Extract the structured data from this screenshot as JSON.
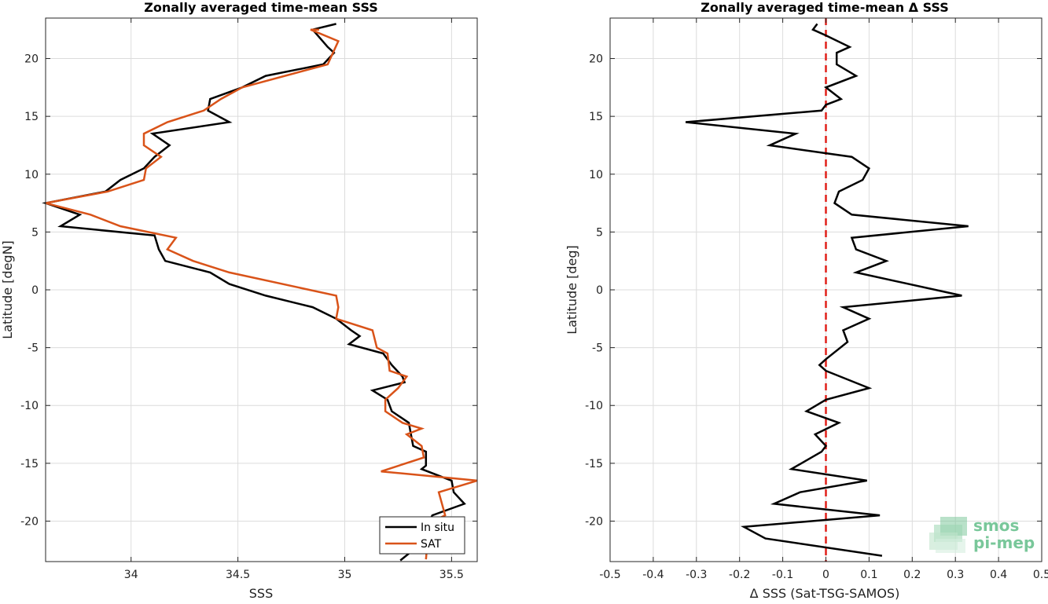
{
  "chart_data": [
    {
      "type": "line",
      "title": "Zonally averaged time-mean SSS",
      "xlabel": "SSS",
      "ylabel": "Latitude [degN]",
      "xlim": [
        33.6,
        35.62
      ],
      "ylim": [
        -23.5,
        23.5
      ],
      "xticks": [
        34,
        34.5,
        35,
        35.5
      ],
      "xtick_labels": [
        "34",
        "34.5",
        "35",
        "35.5"
      ],
      "yticks": [
        20,
        15,
        10,
        5,
        0,
        -5,
        -10,
        -15,
        -20
      ],
      "ytick_labels": [
        "20",
        "15",
        "10",
        "5",
        "0",
        "-5",
        "-10",
        "-15",
        "-20"
      ],
      "grid": true,
      "legend_position": "bottom-right",
      "series": [
        {
          "name": "In situ",
          "color": "#000000",
          "points": [
            [
              34.96,
              23.0
            ],
            [
              34.85,
              22.5
            ],
            [
              34.92,
              21.0
            ],
            [
              34.95,
              20.5
            ],
            [
              34.9,
              19.5
            ],
            [
              34.63,
              18.5
            ],
            [
              34.52,
              17.5
            ],
            [
              34.37,
              16.5
            ],
            [
              34.36,
              15.5
            ],
            [
              34.46,
              14.5
            ],
            [
              34.1,
              13.5
            ],
            [
              34.18,
              12.5
            ],
            [
              34.11,
              11.5
            ],
            [
              34.06,
              10.5
            ],
            [
              33.95,
              9.5
            ],
            [
              33.88,
              8.5
            ],
            [
              33.6,
              7.5
            ],
            [
              33.76,
              6.5
            ],
            [
              33.67,
              5.5
            ],
            [
              34.11,
              4.7
            ],
            [
              34.13,
              3.5
            ],
            [
              34.16,
              2.5
            ],
            [
              34.37,
              1.5
            ],
            [
              34.46,
              0.5
            ],
            [
              34.63,
              -0.5
            ],
            [
              34.85,
              -1.5
            ],
            [
              34.96,
              -2.5
            ],
            [
              35.03,
              -3.5
            ],
            [
              35.07,
              -4.0
            ],
            [
              35.02,
              -4.7
            ],
            [
              35.18,
              -5.5
            ],
            [
              35.22,
              -6.5
            ],
            [
              35.27,
              -7.5
            ],
            [
              35.28,
              -8.0
            ],
            [
              35.13,
              -8.7
            ],
            [
              35.2,
              -9.5
            ],
            [
              35.22,
              -10.5
            ],
            [
              35.3,
              -11.5
            ],
            [
              35.31,
              -12.5
            ],
            [
              35.32,
              -13.5
            ],
            [
              35.38,
              -14.0
            ],
            [
              35.38,
              -15.2
            ],
            [
              35.36,
              -15.5
            ],
            [
              35.5,
              -16.5
            ],
            [
              35.51,
              -17.5
            ],
            [
              35.56,
              -18.5
            ],
            [
              35.41,
              -19.5
            ],
            [
              35.38,
              -20.5
            ],
            [
              35.37,
              -21.5
            ],
            [
              35.32,
              -22.5
            ],
            [
              35.26,
              -23.4
            ]
          ]
        },
        {
          "name": "SAT",
          "color": "#d95319",
          "points": [
            [
              34.88,
              22.5
            ],
            [
              34.84,
              22.5
            ],
            [
              34.97,
              21.5
            ],
            [
              34.92,
              19.5
            ],
            [
              34.52,
              17.5
            ],
            [
              34.42,
              16.5
            ],
            [
              34.34,
              15.5
            ],
            [
              34.17,
              14.5
            ],
            [
              34.06,
              13.5
            ],
            [
              34.06,
              12.5
            ],
            [
              34.14,
              11.5
            ],
            [
              34.07,
              10.5
            ],
            [
              34.06,
              9.5
            ],
            [
              33.89,
              8.5
            ],
            [
              33.6,
              7.5
            ],
            [
              33.81,
              6.5
            ],
            [
              33.95,
              5.5
            ],
            [
              34.21,
              4.5
            ],
            [
              34.17,
              3.5
            ],
            [
              34.29,
              2.5
            ],
            [
              34.46,
              1.5
            ],
            [
              34.96,
              -0.5
            ],
            [
              34.97,
              -1.5
            ],
            [
              34.96,
              -2.5
            ],
            [
              35.13,
              -3.5
            ],
            [
              35.15,
              -5.0
            ],
            [
              35.2,
              -5.5
            ],
            [
              35.21,
              -7.0
            ],
            [
              35.29,
              -7.5
            ],
            [
              35.25,
              -8.5
            ],
            [
              35.19,
              -9.5
            ],
            [
              35.19,
              -10.5
            ],
            [
              35.27,
              -11.5
            ],
            [
              35.36,
              -12.0
            ],
            [
              35.29,
              -12.5
            ],
            [
              35.36,
              -13.5
            ],
            [
              35.37,
              -14.5
            ],
            [
              35.17,
              -15.7
            ],
            [
              35.62,
              -16.5
            ],
            [
              35.44,
              -17.5
            ],
            [
              35.47,
              -19.5
            ],
            [
              35.39,
              -20.2
            ],
            [
              35.39,
              -21.2
            ],
            [
              35.38,
              -23.3
            ]
          ]
        }
      ]
    },
    {
      "type": "line",
      "title": "Zonally averaged time-mean Δ SSS",
      "xlabel": "Δ SSS (Sat-TSG-SAMOS)",
      "ylabel": "Latitude [deg]",
      "xlim": [
        -0.5,
        0.5
      ],
      "ylim": [
        -23.5,
        23.5
      ],
      "xticks": [
        -0.5,
        -0.4,
        -0.3,
        -0.2,
        -0.1,
        0,
        0.1,
        0.2,
        0.3,
        0.4,
        0.5
      ],
      "xtick_labels": [
        "-0.5",
        "-0.4",
        "-0.3",
        "-0.2",
        "-0.1",
        "0",
        "0.1",
        "0.2",
        "0.3",
        "0.4",
        "0.5"
      ],
      "yticks": [
        20,
        15,
        10,
        5,
        0,
        -5,
        -10,
        -15,
        -20
      ],
      "ytick_labels": [
        "20",
        "15",
        "10",
        "5",
        "0",
        "-5",
        "-10",
        "-15",
        "-20"
      ],
      "grid": true,
      "reference_line": {
        "x": 0,
        "color": "#e0201a",
        "style": "dashed"
      },
      "series": [
        {
          "color": "#000000",
          "points": [
            [
              -0.02,
              23.0
            ],
            [
              -0.03,
              22.5
            ],
            [
              0.0,
              22.0
            ],
            [
              0.055,
              21.0
            ],
            [
              0.025,
              20.5
            ],
            [
              0.025,
              19.5
            ],
            [
              0.07,
              18.5
            ],
            [
              0.0,
              17.5
            ],
            [
              0.035,
              16.5
            ],
            [
              0.0,
              16.0
            ],
            [
              -0.01,
              15.5
            ],
            [
              -0.325,
              14.5
            ],
            [
              -0.07,
              13.5
            ],
            [
              -0.13,
              12.5
            ],
            [
              0.06,
              11.5
            ],
            [
              0.1,
              10.5
            ],
            [
              0.085,
              9.5
            ],
            [
              0.03,
              8.5
            ],
            [
              0.02,
              7.5
            ],
            [
              0.06,
              6.5
            ],
            [
              0.33,
              5.5
            ],
            [
              0.06,
              4.5
            ],
            [
              0.07,
              3.5
            ],
            [
              0.14,
              2.5
            ],
            [
              0.07,
              1.5
            ],
            [
              0.315,
              -0.5
            ],
            [
              0.04,
              -1.5
            ],
            [
              0.1,
              -2.5
            ],
            [
              0.04,
              -3.5
            ],
            [
              0.05,
              -4.5
            ],
            [
              0.0,
              -6.0
            ],
            [
              -0.015,
              -6.5
            ],
            [
              0.0,
              -7.0
            ],
            [
              0.1,
              -8.5
            ],
            [
              0.0,
              -9.5
            ],
            [
              -0.045,
              -10.5
            ],
            [
              0.03,
              -11.5
            ],
            [
              -0.025,
              -12.5
            ],
            [
              0.0,
              -13.5
            ],
            [
              -0.01,
              -14.0
            ],
            [
              -0.08,
              -15.5
            ],
            [
              0.095,
              -16.5
            ],
            [
              -0.06,
              -17.5
            ],
            [
              -0.12,
              -18.5
            ],
            [
              0.125,
              -19.5
            ],
            [
              -0.19,
              -20.5
            ],
            [
              -0.14,
              -21.5
            ],
            [
              0.13,
              -23.0
            ]
          ]
        }
      ]
    }
  ],
  "legend": {
    "items": [
      "In situ",
      "SAT"
    ]
  },
  "logo": {
    "line1": "smos",
    "line2": "pi-mep"
  },
  "colors": {
    "in_situ": "#000000",
    "sat": "#d95319",
    "zero_line": "#e0201a",
    "logo": "#79c79a"
  }
}
